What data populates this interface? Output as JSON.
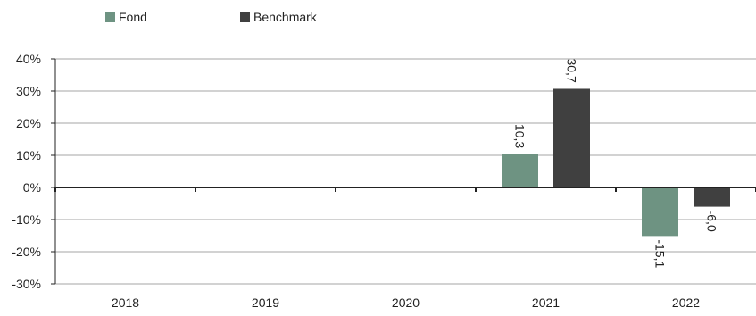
{
  "chart_data": {
    "type": "bar",
    "categories": [
      "2018",
      "2019",
      "2020",
      "2021",
      "2022"
    ],
    "series": [
      {
        "name": "Fond",
        "color": "#6e9382",
        "values": [
          null,
          null,
          null,
          10.3,
          -15.1
        ],
        "labels": [
          "",
          "",
          "",
          "10,3",
          "-15,1"
        ]
      },
      {
        "name": "Benchmark",
        "color": "#404040",
        "values": [
          null,
          null,
          null,
          30.7,
          -6.0
        ],
        "labels": [
          "",
          "",
          "",
          "30,7",
          "-6,0"
        ]
      }
    ],
    "yticks": [
      40,
      30,
      20,
      10,
      0,
      -10,
      -20,
      -30
    ],
    "ytick_labels": [
      "40%",
      "30%",
      "20%",
      "10%",
      "0%",
      "-10%",
      "-20%",
      "-30%"
    ],
    "ylim": [
      -30,
      40
    ],
    "grid": true,
    "legend_position": "top-left",
    "title": "",
    "xlabel": "",
    "ylabel": ""
  }
}
